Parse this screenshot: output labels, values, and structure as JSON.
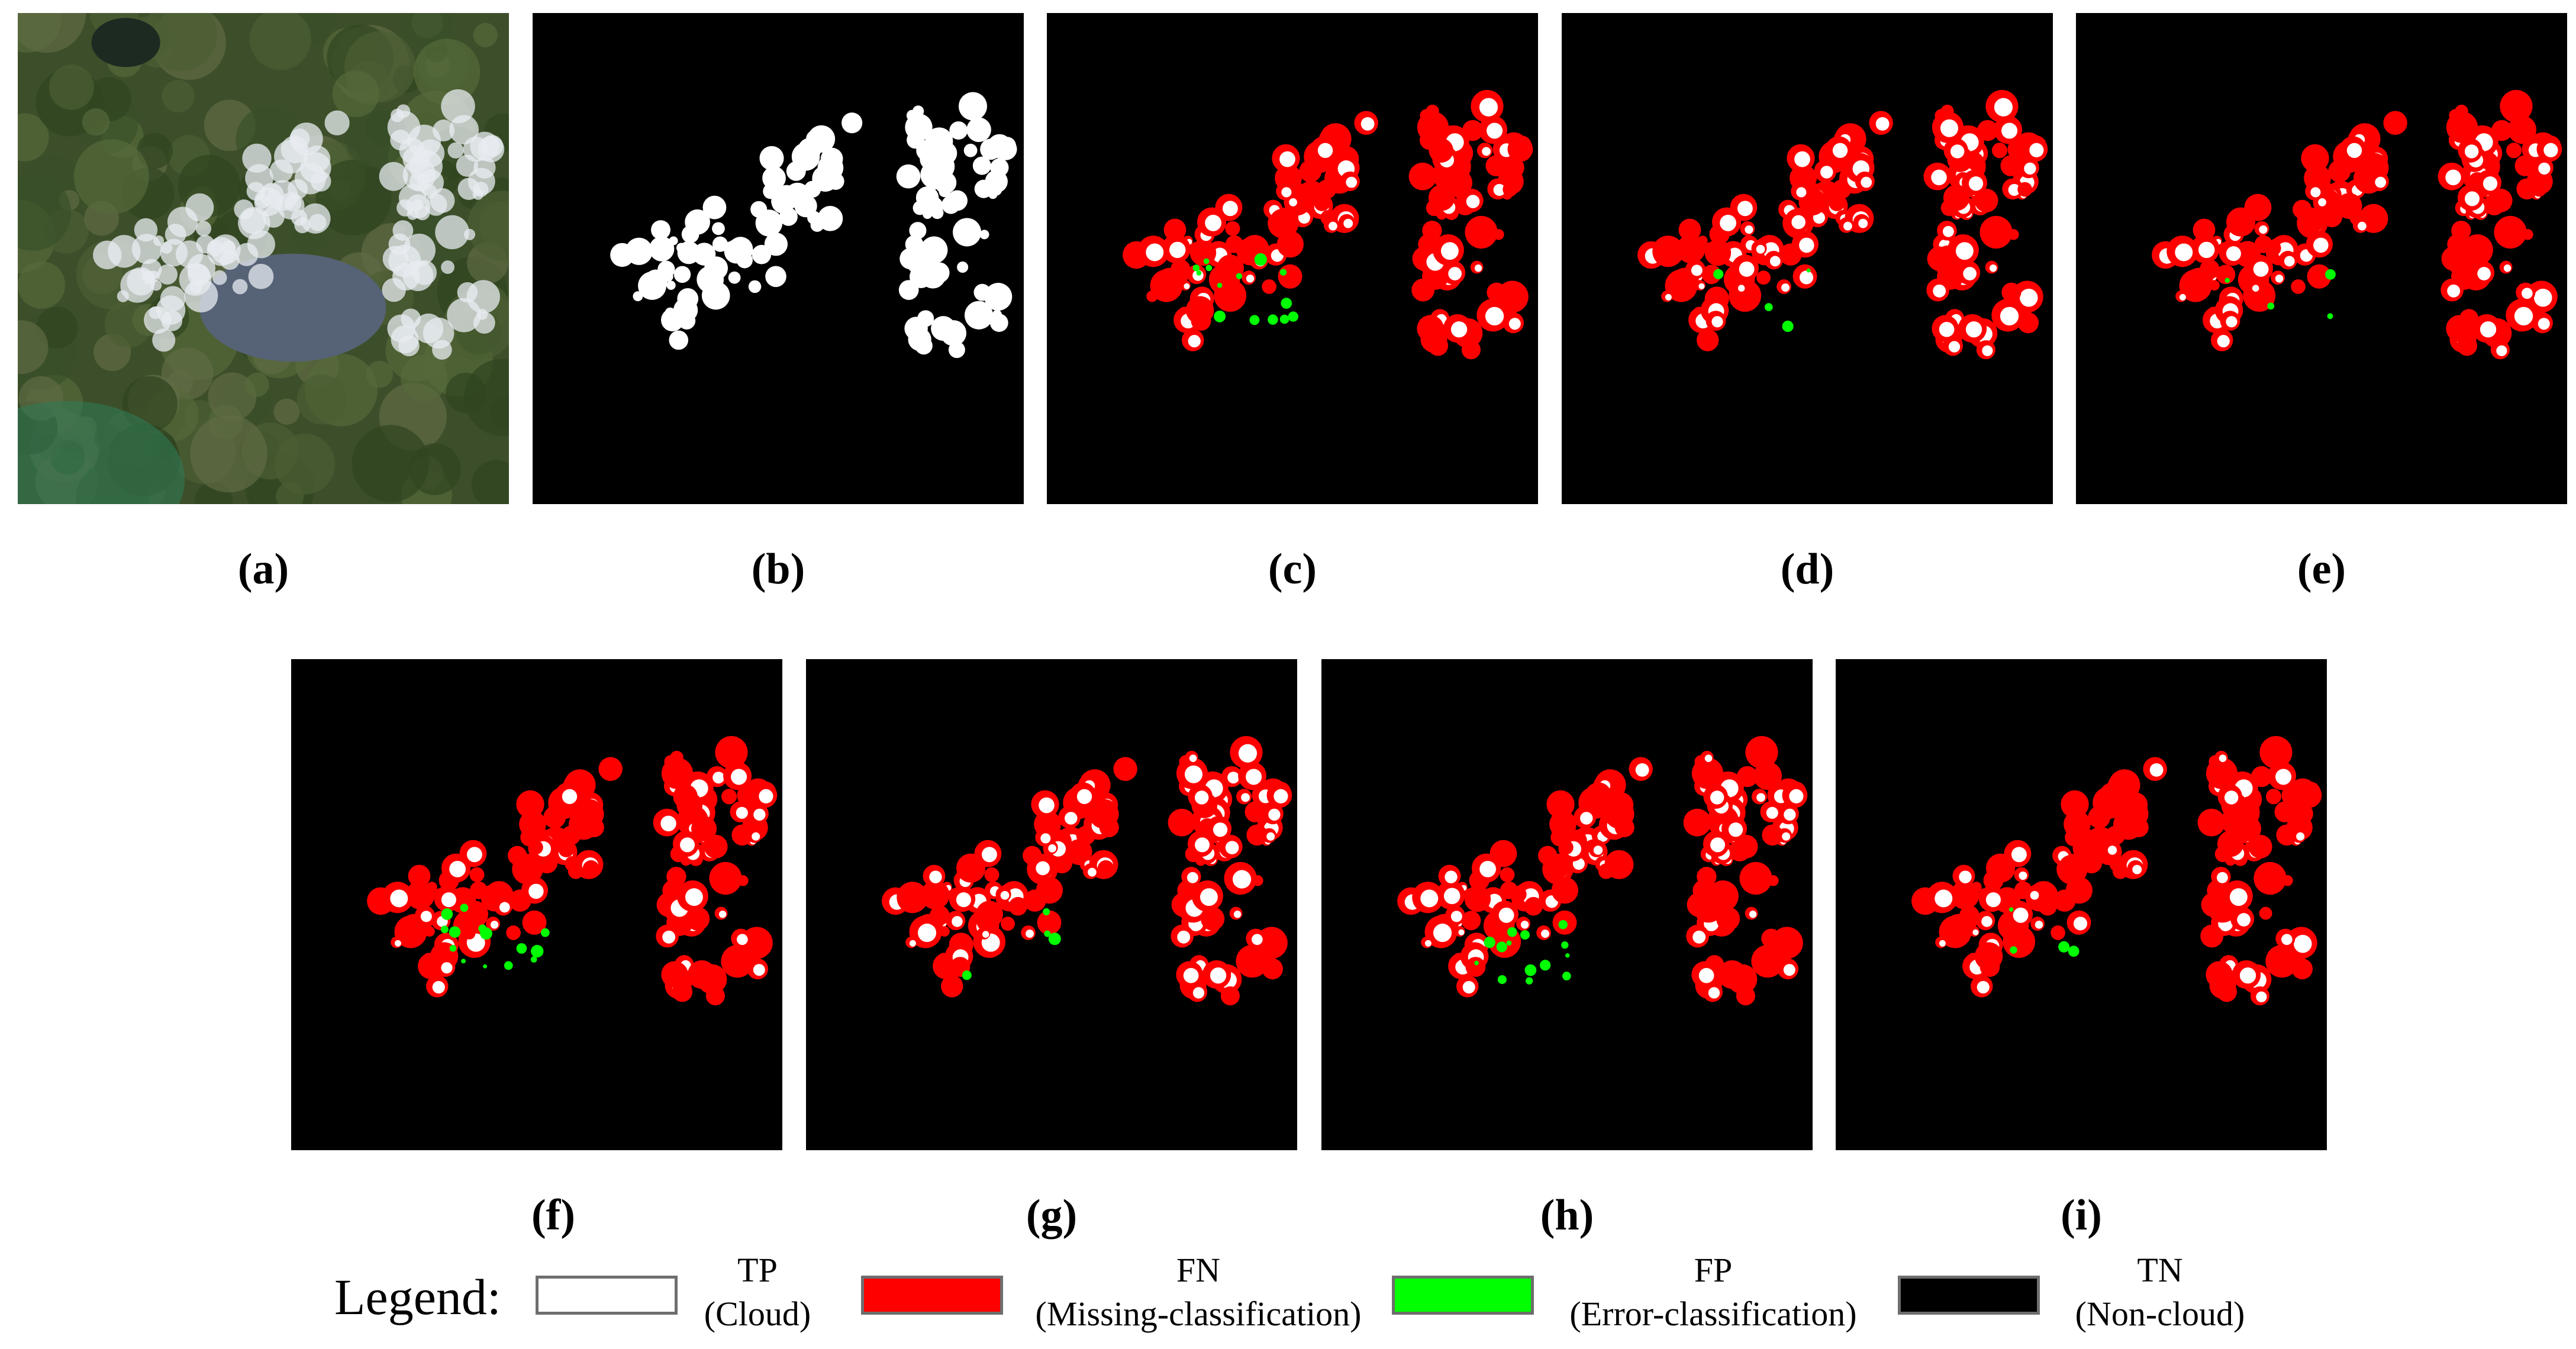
{
  "panels": [
    {
      "letter": "a",
      "kind": "image"
    },
    {
      "letter": "b",
      "kind": "mask"
    },
    {
      "letter": "c",
      "kind": "result"
    },
    {
      "letter": "d",
      "kind": "result"
    },
    {
      "letter": "e",
      "kind": "result"
    },
    {
      "letter": "f",
      "kind": "result"
    },
    {
      "letter": "g",
      "kind": "result"
    },
    {
      "letter": "h",
      "kind": "result"
    },
    {
      "letter": "i",
      "kind": "result"
    }
  ],
  "captions": {
    "a": "(a)",
    "b": "(b)",
    "c": "(c)",
    "d": "(d)",
    "e": "(e)",
    "f": "(f)",
    "g": "(g)",
    "h": "(h)",
    "i": "(i)"
  },
  "legend": {
    "title": "Legend:",
    "items": [
      {
        "code": "TP",
        "desc": "(Cloud)",
        "color": "#ffffff"
      },
      {
        "code": "FN",
        "desc": "(Missing-classification)",
        "color": "#ff0000"
      },
      {
        "code": "FP",
        "desc": "(Error-classification)",
        "color": "#00ff00"
      },
      {
        "code": "TN",
        "desc": "(Non-cloud)",
        "color": "#000000"
      }
    ]
  },
  "colors": {
    "tp": "#ffffff",
    "fn": "#ff0000",
    "fp": "#00ff00",
    "tn": "#000000"
  }
}
